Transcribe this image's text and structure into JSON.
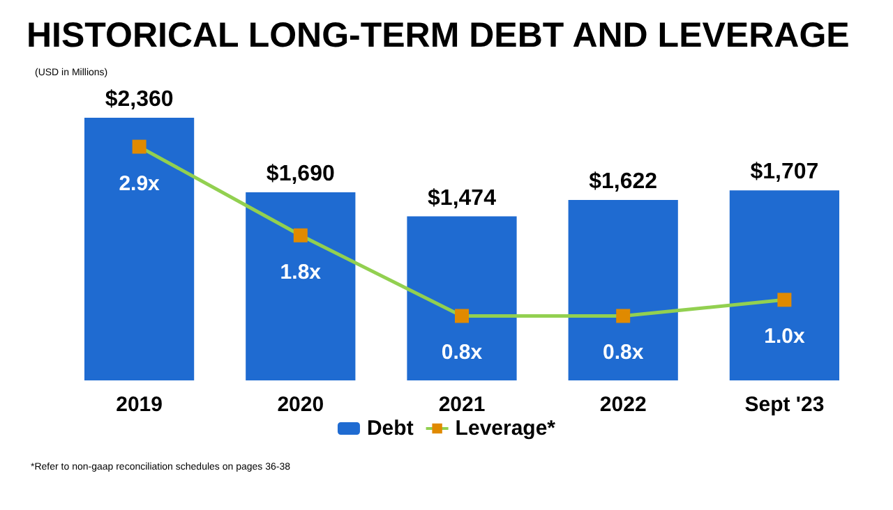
{
  "chart_data": {
    "type": "bar",
    "title": "HISTORICAL LONG-TERM DEBT AND LEVERAGE",
    "subtitle": "(USD in Millions)",
    "categories": [
      "2019",
      "2020",
      "2021",
      "2022",
      "Sept '23"
    ],
    "series": [
      {
        "name": "Debt",
        "color": "#1f6bd1",
        "values": [
          2360,
          1690,
          1474,
          1622,
          1707
        ],
        "value_labels": [
          "$2,360",
          "$1,690",
          "$1,474",
          "$1,622",
          "$1,707"
        ]
      },
      {
        "name": "Leverage*",
        "type": "line",
        "axis": "y2",
        "color": "#92d050",
        "colors": [
          "#e08a00",
          "#e08a00",
          "#e08a00",
          "#e08a00",
          "#e08a00"
        ],
        "marker": "square",
        "values": [
          2.9,
          1.8,
          0.8,
          0.8,
          1.0
        ],
        "value_labels": [
          "2.9x",
          "1.8x",
          "0.8x",
          "0.8x",
          "1.0x"
        ]
      }
    ],
    "legend": "bottom",
    "annotations": [
      "*Refer to non-gaap reconciliation schedules on pages 36-38"
    ]
  }
}
